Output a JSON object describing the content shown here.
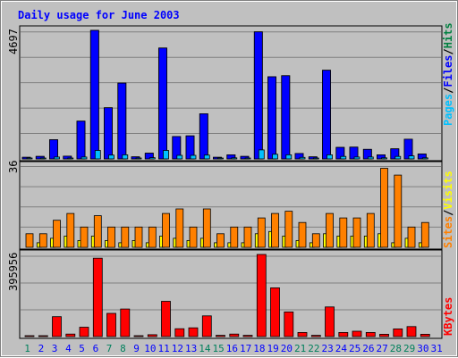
{
  "title": "Daily usage for June 2003",
  "colors": {
    "background": "#c0c0c0",
    "title": "#0000ff",
    "hits": "#008040",
    "files": "#0000ff",
    "pages": "#00c0ff",
    "visits": "#ffff00",
    "sites": "#ff8000",
    "kbytes": "#ff0000",
    "weekend_day": "#00805c",
    "weekday": "#0000ff",
    "gridline": "#808080",
    "bar_outline": "#000000"
  },
  "chart_data": [
    {
      "type": "bar",
      "panel": "hits-files-pages",
      "title": "Daily usage for June 2003",
      "ylabel_parts": [
        "Pages",
        "Files",
        "Hits"
      ],
      "ymax_label": "4697",
      "ylim": [
        0,
        4697
      ],
      "grid": true,
      "categories": [
        "1",
        "2",
        "3",
        "4",
        "5",
        "6",
        "7",
        "8",
        "9",
        "10",
        "11",
        "12",
        "13",
        "14",
        "15",
        "16",
        "17",
        "18",
        "19",
        "20",
        "21",
        "22",
        "23",
        "24",
        "25",
        "26",
        "27",
        "28",
        "29",
        "30",
        "31"
      ],
      "series": [
        {
          "name": "Hits",
          "values": [
            60,
            90,
            700,
            100,
            1380,
            4697,
            1870,
            2770,
            75,
            210,
            4050,
            820,
            840,
            1650,
            60,
            150,
            90,
            4640,
            3000,
            3040,
            200,
            75,
            3240,
            420,
            430,
            350,
            150,
            370,
            720,
            180,
            0
          ]
        },
        {
          "name": "Files",
          "values": [
            60,
            90,
            700,
            100,
            1380,
            4697,
            1870,
            2770,
            75,
            210,
            4050,
            820,
            840,
            1650,
            60,
            150,
            90,
            4640,
            3000,
            3040,
            200,
            75,
            3240,
            420,
            430,
            350,
            150,
            370,
            720,
            180,
            0
          ]
        },
        {
          "name": "Pages",
          "values": [
            10,
            25,
            70,
            25,
            70,
            310,
            140,
            150,
            15,
            45,
            310,
            130,
            130,
            140,
            10,
            40,
            25,
            330,
            170,
            150,
            55,
            15,
            150,
            90,
            70,
            70,
            40,
            90,
            110,
            40,
            0
          ]
        }
      ]
    },
    {
      "type": "bar",
      "panel": "sites-visits",
      "ylabel_parts": [
        "Sites",
        "Visits"
      ],
      "ymax_label": "36",
      "ylim": [
        0,
        36
      ],
      "grid": true,
      "categories": [
        "1",
        "2",
        "3",
        "4",
        "5",
        "6",
        "7",
        "8",
        "9",
        "10",
        "11",
        "12",
        "13",
        "14",
        "15",
        "16",
        "17",
        "18",
        "19",
        "20",
        "21",
        "22",
        "23",
        "24",
        "25",
        "26",
        "27",
        "28",
        "29",
        "30",
        "31"
      ],
      "series": [
        {
          "name": "Visits",
          "values": [
            0,
            2,
            4,
            5,
            3,
            5,
            3,
            2,
            3,
            2,
            5,
            4,
            3,
            4,
            2,
            2,
            2,
            6,
            7,
            5,
            3,
            2,
            6,
            5,
            5,
            5,
            6,
            2,
            4,
            2,
            0
          ]
        },
        {
          "name": "Sites",
          "values": [
            6,
            6,
            12,
            15,
            9,
            14,
            9,
            9,
            9,
            9,
            15,
            17,
            9,
            17,
            6,
            9,
            9,
            13,
            15,
            16,
            11,
            6,
            15,
            13,
            13,
            15,
            35,
            32,
            9,
            11,
            0
          ]
        }
      ]
    },
    {
      "type": "bar",
      "panel": "kbytes",
      "ylabel_parts": [
        "KBytes"
      ],
      "ymax_label": "395956",
      "ylim": [
        0,
        395956
      ],
      "grid": true,
      "categories": [
        "1",
        "2",
        "3",
        "4",
        "5",
        "6",
        "7",
        "8",
        "9",
        "10",
        "11",
        "12",
        "13",
        "14",
        "15",
        "16",
        "17",
        "18",
        "19",
        "20",
        "21",
        "22",
        "23",
        "24",
        "25",
        "26",
        "27",
        "28",
        "29",
        "30",
        "31"
      ],
      "series": [
        {
          "name": "KBytes",
          "values": [
            2000,
            2000,
            96000,
            12000,
            45000,
            378000,
            112000,
            133000,
            2000,
            9000,
            170000,
            38000,
            42000,
            100000,
            6000,
            12000,
            6000,
            395956,
            235000,
            119000,
            20000,
            6000,
            143000,
            20000,
            26000,
            20000,
            11000,
            37000,
            48000,
            11000,
            0
          ]
        }
      ]
    }
  ],
  "axis": {
    "days": [
      "1",
      "2",
      "3",
      "4",
      "5",
      "6",
      "7",
      "8",
      "9",
      "10",
      "11",
      "12",
      "13",
      "14",
      "15",
      "16",
      "17",
      "18",
      "19",
      "20",
      "21",
      "22",
      "23",
      "24",
      "25",
      "26",
      "27",
      "28",
      "29",
      "30",
      "31"
    ],
    "weekend_days": [
      "1",
      "7",
      "8",
      "14",
      "15",
      "21",
      "22",
      "28",
      "29"
    ]
  }
}
